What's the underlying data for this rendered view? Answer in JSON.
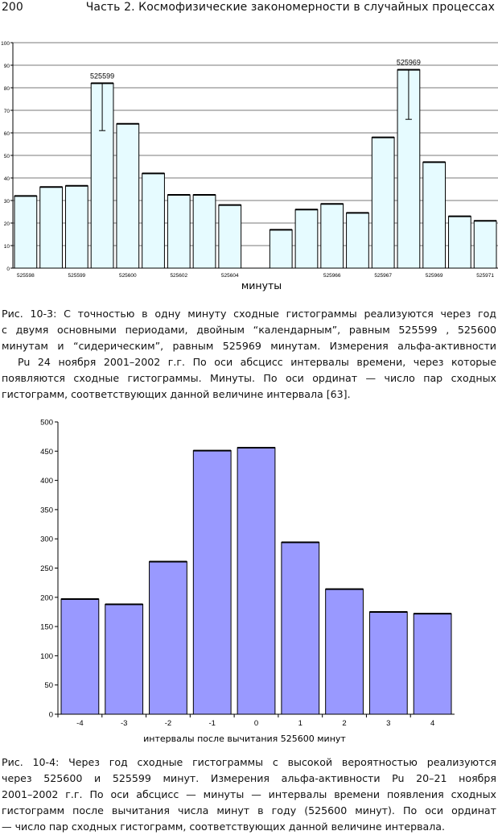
{
  "header": {
    "page_number": "200",
    "running_title": "Часть 2.   Космофизические закономерности в случайных процессах"
  },
  "chart_data": [
    {
      "type": "bar",
      "x_tick_labels": [
        "525598",
        "525599",
        "525600",
        "525602",
        "525604",
        "525966",
        "525967",
        "525969",
        "525971"
      ],
      "values": [
        32,
        36,
        36.5,
        82,
        64,
        42,
        32.5,
        32.5,
        28,
        null,
        17,
        26,
        28.5,
        24.5,
        58,
        88,
        47,
        23,
        21
      ],
      "error_bars": [
        {
          "bar_index": 3,
          "low": 61,
          "high": 82
        },
        {
          "bar_index": 15,
          "low": 66,
          "high": 88
        }
      ],
      "annotations": [
        {
          "bar_index": 3,
          "text": "525599"
        },
        {
          "bar_index": 15,
          "text": "525969"
        }
      ],
      "xlabel": "минуты",
      "ylim": [
        0,
        100
      ],
      "yticks": [
        0,
        10,
        20,
        30,
        40,
        50,
        60,
        70,
        80,
        90,
        100
      ],
      "grid": true,
      "bar_color": "#e6fbff",
      "bar_edge_color": "#000000"
    },
    {
      "type": "bar",
      "categories": [
        "-4",
        "-3",
        "-2",
        "-1",
        "0",
        "1",
        "2",
        "3",
        "4"
      ],
      "values": [
        197,
        188,
        261,
        451,
        456,
        294,
        214,
        175,
        172
      ],
      "xlabel": "интервалы после вычитания 525600 минут",
      "ylim": [
        0,
        500
      ],
      "yticks": [
        0,
        50,
        100,
        150,
        200,
        250,
        300,
        350,
        400,
        450,
        500
      ],
      "grid": false,
      "bar_color": "#9999ff",
      "bar_edge_color": "#000000"
    }
  ],
  "captions": {
    "fig1": [
      "Рис. 10-3: С точностью в одну минуту сходные гистограммы реализуются через год",
      "с двумя основными периодами, двойным “календарным”, равным 525599 , 525600",
      "минутам и “сидерическим”, равным 525969 минутам. Измерения альфа-активности",
      "Pu 24 ноября 2001–2002 г.г. По оси абсцисс интервалы времени, через которые",
      "появляются сходные гистограммы. Минуты. По оси ординат — число пар сходных",
      "гистограмм, соответствующих данной величине интервала [63]."
    ],
    "fig2": [
      "Рис. 10-4: Через год сходные гистограммы с высокой вероятностью реализуются",
      "через 525600 и 525599 минут. Измерения альфа-активности   Pu 20–21 ноября",
      "2001–2002 г.г. По оси абсцисс — минуты — интервалы времени появления сходных",
      "гистограмм после вычитания числа минут в году (525600 минут). По оси ординат",
      "— число пар сходных гистограмм, соответствующих данной величине интервала."
    ]
  }
}
